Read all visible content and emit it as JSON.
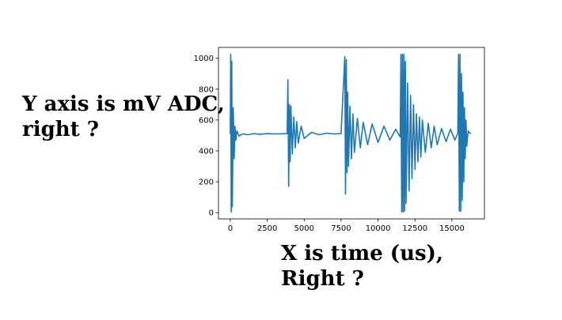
{
  "annotations": {
    "y_note_line1": "Y axis is mV ADC,",
    "y_note_line2": "right ?",
    "x_note_line1": "X is time (us),",
    "x_note_line2": "Right ?"
  },
  "chart_data": {
    "type": "line",
    "title": "",
    "xlabel": "",
    "ylabel": "",
    "xlim": [
      -800,
      17200
    ],
    "ylim": [
      -40,
      1070
    ],
    "x_ticks": [
      0,
      2500,
      5000,
      7500,
      10000,
      12500,
      15000
    ],
    "x_tick_labels": [
      "0",
      "2500",
      "5000",
      "7500",
      "10000",
      "12500",
      "15000"
    ],
    "y_ticks": [
      0,
      200,
      400,
      600,
      800,
      1000
    ],
    "y_tick_labels": [
      "0",
      "200",
      "400",
      "600",
      "800",
      "1000"
    ],
    "grid": false,
    "legend": "none",
    "series": [
      {
        "color": "#1f77b4",
        "x": [
          0,
          30,
          60,
          100,
          140,
          200,
          260,
          320,
          380,
          450,
          600,
          800,
          1200,
          1600,
          2000,
          2500,
          3000,
          3500,
          3850,
          3900,
          3950,
          4000,
          4050,
          4100,
          4200,
          4300,
          4400,
          4500,
          4600,
          4800,
          5000,
          5500,
          6000,
          6500,
          7000,
          7500,
          7750,
          7800,
          7850,
          7900,
          7950,
          8000,
          8100,
          8200,
          8300,
          8400,
          8600,
          8800,
          9000,
          9300,
          9600,
          10000,
          10400,
          10800,
          11200,
          11500,
          11550,
          11600,
          11650,
          11700,
          11750,
          11800,
          11850,
          11900,
          12000,
          12100,
          12200,
          12300,
          12400,
          12500,
          12600,
          12700,
          12800,
          12900,
          13000,
          13200,
          13400,
          13600,
          13800,
          14000,
          14300,
          14600,
          14900,
          15200,
          15400,
          15450,
          15500,
          15550,
          15600,
          15650,
          15700,
          15750,
          15800,
          15850,
          15900,
          15950,
          16000,
          16100,
          16200,
          16300
        ],
        "y": [
          510,
          1025,
          5,
          980,
          40,
          680,
          350,
          560,
          470,
          530,
          495,
          510,
          505,
          512,
          508,
          512,
          510,
          511,
          512,
          860,
          170,
          700,
          330,
          690,
          380,
          620,
          420,
          590,
          450,
          560,
          480,
          520,
          505,
          515,
          510,
          512,
          1010,
          120,
          990,
          260,
          780,
          300,
          690,
          350,
          640,
          390,
          610,
          420,
          585,
          440,
          575,
          455,
          560,
          470,
          540,
          490,
          1025,
          5,
          1025,
          5,
          1025,
          10,
          980,
          60,
          840,
          140,
          760,
          220,
          700,
          280,
          640,
          330,
          620,
          360,
          600,
          390,
          580,
          420,
          560,
          440,
          545,
          460,
          540,
          470,
          515,
          1025,
          10,
          1025,
          10,
          900,
          80,
          780,
          200,
          680,
          350,
          600,
          430,
          530,
          515,
          515
        ]
      }
    ]
  }
}
